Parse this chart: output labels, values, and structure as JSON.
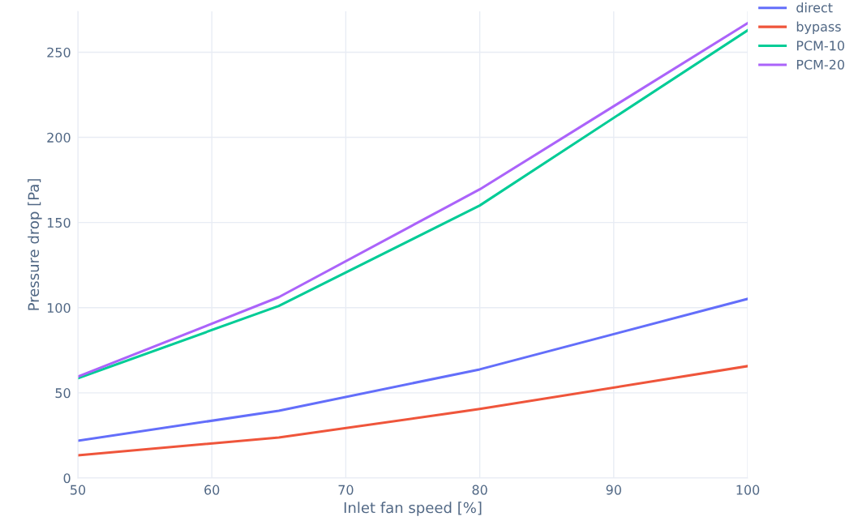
{
  "chart_data": {
    "type": "line",
    "xlabel": "Inlet fan speed [%]",
    "ylabel": "Pressure drop [Pa]",
    "x": [
      50,
      65,
      80,
      100
    ],
    "series": [
      {
        "name": "direct",
        "color": "#636efa",
        "values": [
          21.9,
          39.5,
          63.8,
          105.2
        ]
      },
      {
        "name": "bypass",
        "color": "#ef553b",
        "values": [
          13.3,
          23.8,
          40.5,
          65.7
        ]
      },
      {
        "name": "PCM-10",
        "color": "#00cc96",
        "values": [
          58.6,
          101,
          160,
          262.9
        ]
      },
      {
        "name": "PCM-20",
        "color": "#ab63fa",
        "values": [
          59.5,
          106.2,
          169.5,
          267.1
        ]
      }
    ],
    "xlim": [
      50,
      100
    ],
    "xticks": [
      50,
      60,
      70,
      80,
      90,
      100
    ],
    "ylim": [
      0,
      274
    ],
    "yticks": [
      0,
      50,
      100,
      150,
      200,
      250
    ],
    "grid": true,
    "legend": "top right",
    "marker": "none",
    "line_style": "solid"
  }
}
